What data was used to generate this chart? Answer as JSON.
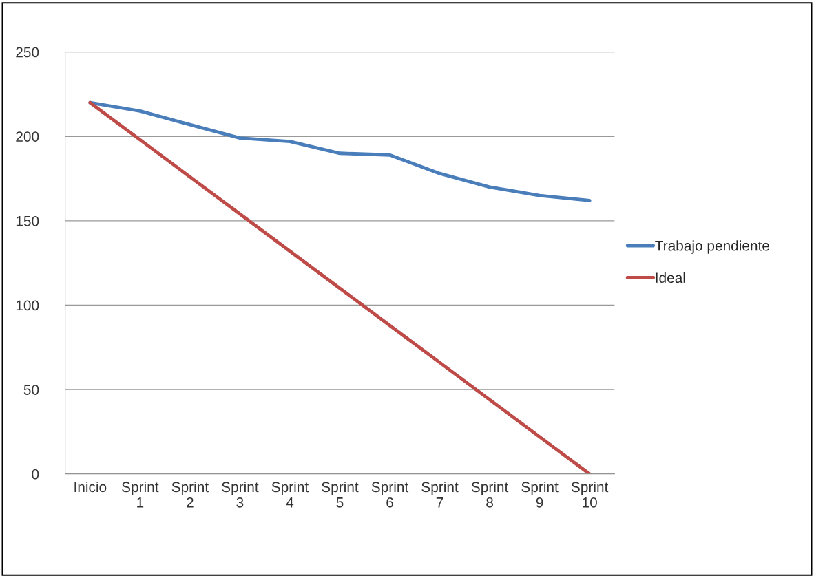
{
  "chart_data": {
    "type": "line",
    "categories": [
      "Inicio",
      "Sprint\n1",
      "Sprint\n2",
      "Sprint\n3",
      "Sprint\n4",
      "Sprint\n5",
      "Sprint\n6",
      "Sprint\n7",
      "Sprint\n8",
      "Sprint\n9",
      "Sprint\n10"
    ],
    "series": [
      {
        "name": "Trabajo pendiente",
        "color": "#4a7ebb",
        "values": [
          220,
          215,
          207,
          199,
          197,
          190,
          189,
          178,
          170,
          165,
          162
        ]
      },
      {
        "name": "Ideal",
        "color": "#be4b48",
        "values": [
          220,
          198,
          176,
          154,
          132,
          110,
          88,
          66,
          44,
          22,
          0
        ]
      }
    ],
    "ylim": [
      0,
      250
    ],
    "yticks": [
      0,
      50,
      100,
      150,
      200,
      250
    ],
    "grid": "y",
    "legend": "right",
    "marker": "none",
    "line_style": "solid"
  }
}
